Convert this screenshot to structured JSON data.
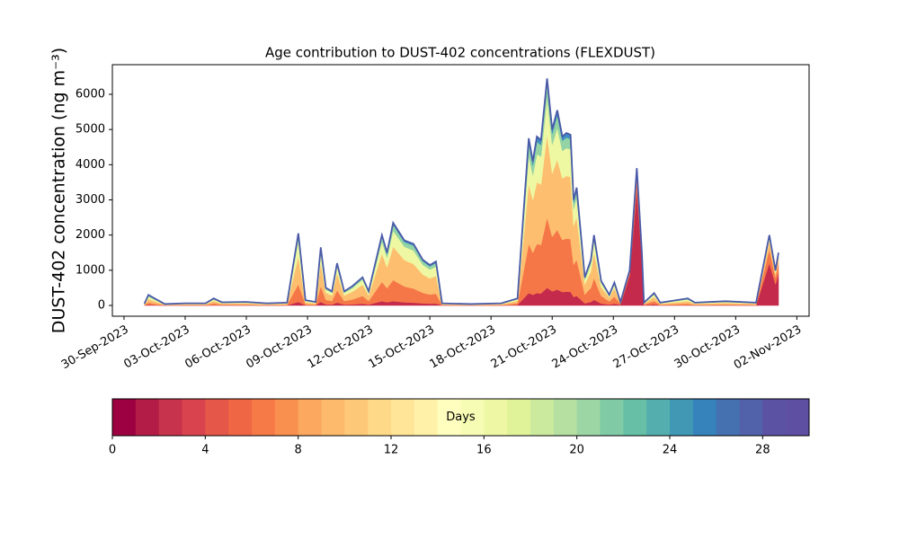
{
  "chart_data": {
    "type": "stacked_area",
    "title": "Age contribution to DUST-402 concentrations (FLEXDUST)",
    "ylabel": "DUST-402 concentration (ng m⁻³)",
    "x": [
      1.0,
      1.2,
      1.5,
      2.0,
      3.0,
      4.0,
      4.4,
      4.8,
      6.0,
      7.0,
      8.0,
      8.55,
      8.9,
      9.4,
      9.65,
      9.9,
      10.2,
      10.45,
      10.8,
      11.2,
      11.7,
      12.0,
      12.65,
      12.9,
      13.2,
      13.75,
      14.2,
      14.65,
      15.0,
      15.3,
      15.6,
      17.0,
      18.5,
      19.3,
      19.85,
      20.05,
      20.25,
      20.45,
      20.75,
      21.0,
      21.25,
      21.5,
      21.7,
      21.9,
      22.05,
      22.2,
      22.6,
      22.9,
      23.05,
      23.4,
      23.8,
      24.05,
      24.35,
      24.8,
      25.15,
      25.4,
      25.5,
      26.0,
      26.3,
      27.65,
      28.0,
      29.5,
      31.0,
      31.65,
      31.95,
      32.1
    ],
    "series": [
      {
        "color": "#c42a4b",
        "values": [
          5,
          20,
          10,
          2,
          3,
          3,
          10,
          5,
          5,
          3,
          4,
          100,
          8,
          5,
          100,
          30,
          25,
          80,
          25,
          30,
          50,
          25,
          120,
          90,
          120,
          90,
          80,
          60,
          50,
          55,
          3,
          2,
          3,
          15,
          350,
          300,
          350,
          340,
          500,
          400,
          450,
          380,
          390,
          385,
          240,
          270,
          60,
          100,
          160,
          55,
          25,
          50,
          20,
          850,
          3300,
          1300,
          10,
          30,
          5,
          10,
          4,
          6,
          4,
          1200,
          600,
          900
        ]
      },
      {
        "color": "#f57748",
        "values": [
          10,
          60,
          40,
          8,
          12,
          12,
          50,
          20,
          20,
          12,
          16,
          500,
          30,
          20,
          450,
          130,
          100,
          350,
          100,
          140,
          220,
          100,
          550,
          400,
          600,
          450,
          400,
          300,
          260,
          280,
          12,
          8,
          12,
          50,
          1400,
          1200,
          1400,
          1380,
          2000,
          1550,
          1700,
          1480,
          1510,
          1500,
          920,
          1030,
          250,
          400,
          620,
          220,
          90,
          200,
          25,
          100,
          400,
          150,
          20,
          90,
          15,
          40,
          16,
          24,
          16,
          400,
          200,
          300
        ]
      },
      {
        "color": "#fdbf6f",
        "values": [
          15,
          100,
          70,
          12,
          20,
          20,
          70,
          30,
          35,
          20,
          28,
          800,
          55,
          35,
          650,
          200,
          160,
          480,
          160,
          220,
          320,
          160,
          800,
          600,
          950,
          750,
          700,
          520,
          460,
          500,
          20,
          12,
          20,
          70,
          1700,
          1500,
          1750,
          1720,
          2350,
          1800,
          2000,
          1750,
          1780,
          1770,
          1100,
          1220,
          290,
          470,
          730,
          250,
          110,
          240,
          30,
          30,
          120,
          30,
          25,
          120,
          30,
          70,
          28,
          42,
          28,
          250,
          120,
          180
        ]
      },
      {
        "color": "#eef8a3",
        "values": [
          10,
          70,
          50,
          10,
          15,
          15,
          40,
          20,
          25,
          15,
          20,
          450,
          35,
          25,
          300,
          90,
          75,
          190,
          75,
          100,
          140,
          75,
          350,
          270,
          450,
          380,
          380,
          280,
          250,
          270,
          15,
          10,
          15,
          40,
          800,
          700,
          800,
          790,
          1050,
          820,
          900,
          780,
          790,
          785,
          480,
          540,
          130,
          210,
          320,
          110,
          50,
          100,
          15,
          10,
          40,
          10,
          15,
          70,
          18,
          50,
          20,
          30,
          20,
          100,
          50,
          80
        ]
      },
      {
        "color": "#93d3a4",
        "values": [
          5,
          30,
          20,
          5,
          6,
          6,
          20,
          10,
          10,
          6,
          8,
          150,
          15,
          10,
          100,
          35,
          28,
          70,
          28,
          40,
          50,
          28,
          130,
          100,
          170,
          130,
          140,
          100,
          90,
          100,
          6,
          5,
          6,
          15,
          350,
          280,
          350,
          330,
          400,
          310,
          350,
          290,
          300,
          290,
          180,
          200,
          50,
          80,
          120,
          45,
          18,
          40,
          6,
          5,
          20,
          5,
          6,
          30,
          8,
          20,
          8,
          12,
          8,
          35,
          20,
          30
        ]
      },
      {
        "color": "#3f8fc0",
        "values": [
          5,
          20,
          10,
          3,
          4,
          4,
          10,
          5,
          5,
          4,
          4,
          50,
          7,
          5,
          50,
          15,
          12,
          30,
          12,
          20,
          20,
          12,
          50,
          40,
          60,
          50,
          50,
          40,
          40,
          45,
          4,
          3,
          4,
          10,
          150,
          120,
          150,
          140,
          150,
          120,
          150,
          120,
          130,
          120,
          80,
          90,
          20,
          40,
          50,
          20,
          7,
          20,
          4,
          5,
          20,
          5,
          4,
          10,
          4,
          10,
          4,
          6,
          4,
          15,
          10,
          10
        ]
      }
    ],
    "outline_color": "#4a5aa8",
    "xlim": [
      -0.57,
      33.6
    ],
    "xticks": [
      {
        "value": 0,
        "label": "30-Sep-2023"
      },
      {
        "value": 3,
        "label": "03-Oct-2023"
      },
      {
        "value": 6,
        "label": "06-Oct-2023"
      },
      {
        "value": 9,
        "label": "09-Oct-2023"
      },
      {
        "value": 12,
        "label": "12-Oct-2023"
      },
      {
        "value": 15,
        "label": "15-Oct-2023"
      },
      {
        "value": 18,
        "label": "18-Oct-2023"
      },
      {
        "value": 21,
        "label": "21-Oct-2023"
      },
      {
        "value": 24,
        "label": "24-Oct-2023"
      },
      {
        "value": 27,
        "label": "27-Oct-2023"
      },
      {
        "value": 30,
        "label": "30-Oct-2023"
      },
      {
        "value": 33,
        "label": "02-Nov-2023"
      }
    ],
    "ylim": [
      -306,
      6842
    ],
    "yticks": [
      0,
      1000,
      2000,
      3000,
      4000,
      5000,
      6000
    ],
    "colorbar": {
      "label": "Days",
      "lim": [
        0,
        30
      ],
      "ticks": [
        0,
        4,
        8,
        12,
        16,
        20,
        24,
        28
      ],
      "colors": [
        "#9e0142",
        "#b31c47",
        "#c7324c",
        "#d8434e",
        "#e55749",
        "#ef6645",
        "#f57a48",
        "#f9904f",
        "#fca85e",
        "#fdba6d",
        "#fdc978",
        "#fed987",
        "#fee597",
        "#fff1a8",
        "#fffebe",
        "#f7fcb4",
        "#eef8a4",
        "#e1f399",
        "#ccea9d",
        "#b5e0a2",
        "#9cd6a4",
        "#80cba5",
        "#67c0a5",
        "#53aead",
        "#4098b4",
        "#3683bb",
        "#4571b0",
        "#5161aa",
        "#5c52a3",
        "#5e4fa2"
      ]
    }
  }
}
